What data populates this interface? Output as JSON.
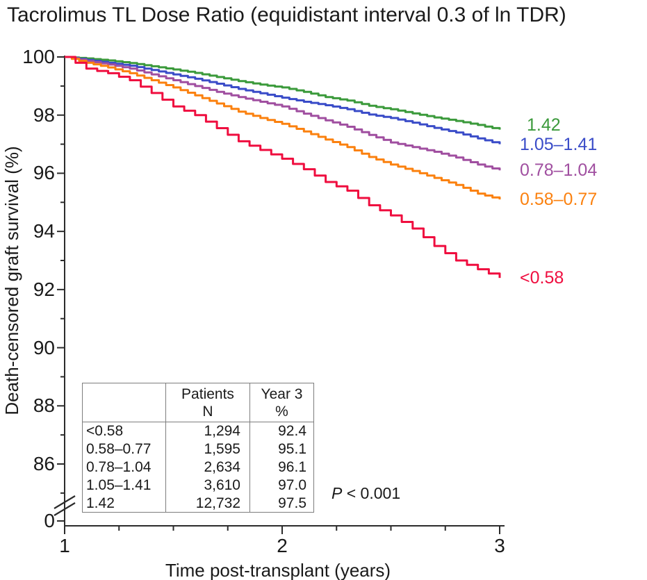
{
  "figure": {
    "title": "Tacrolimus TL Dose Ratio (equidistant interval 0.3 of ln TDR)",
    "stat_label": "P",
    "stat_value": " < 0.001"
  },
  "colors": {
    "text": "#1a1a1a",
    "axis": "#2b2b2b",
    "table_border": "#7d7d7d",
    "green": "#3b9a3b",
    "blue": "#3a4cc8",
    "purple": "#a04fa0",
    "orange": "#fb810f",
    "red": "#ef0e3f"
  },
  "inset_table": {
    "header": [
      "",
      "Patients|N",
      "Year 3|%"
    ],
    "rows": [
      [
        "<0.58",
        "1,294",
        "92.4"
      ],
      [
        "0.58–0.77",
        "1,595",
        "95.1"
      ],
      [
        "0.78–1.04",
        "2,634",
        "96.1"
      ],
      [
        "1.05–1.41",
        "3,610",
        "97.0"
      ],
      [
        "1.42",
        "12,732",
        "97.5"
      ]
    ]
  },
  "chart_data": {
    "type": "line",
    "subtype": "kaplan-meier-step",
    "title": "Tacrolimus TL Dose Ratio (equidistant interval 0.3 of ln TDR)",
    "xlabel": "Time post-transplant (years)",
    "ylabel": "Death-censored graft survival (%)",
    "x_ticks": [
      1,
      2,
      3
    ],
    "x_minor_interval": 0.25,
    "y_ticks": [
      100,
      98,
      96,
      94,
      92,
      90,
      88,
      86
    ],
    "y_minor_interval": 1,
    "y_axis_break": true,
    "y_zero_label": "0",
    "xlim": [
      1,
      3
    ],
    "ylim_main": [
      86,
      100
    ],
    "grid": false,
    "legend_position": "right-of-curves",
    "p_value": "P < 0.001",
    "x": [
      1.0,
      1.1,
      1.2,
      1.3,
      1.4,
      1.5,
      1.6,
      1.7,
      1.8,
      1.9,
      2.0,
      2.1,
      2.2,
      2.3,
      2.4,
      2.5,
      2.6,
      2.7,
      2.8,
      2.9,
      3.0
    ],
    "series": [
      {
        "name": "1.42",
        "color_key": "green",
        "patients": "12,732",
        "year3_pct": 97.5,
        "step_detail": 3,
        "y": [
          100,
          99.95,
          99.88,
          99.79,
          99.68,
          99.57,
          99.45,
          99.31,
          99.17,
          99.05,
          98.95,
          98.8,
          98.62,
          98.5,
          98.32,
          98.2,
          98.06,
          97.92,
          97.8,
          97.66,
          97.5
        ]
      },
      {
        "name": "1.05–1.41",
        "color_key": "blue",
        "patients": "3,610",
        "year3_pct": 97.0,
        "step_detail": 3,
        "y": [
          100,
          99.9,
          99.8,
          99.7,
          99.55,
          99.4,
          99.25,
          99.08,
          98.9,
          98.75,
          98.6,
          98.46,
          98.34,
          98.2,
          98.02,
          97.9,
          97.74,
          97.56,
          97.4,
          97.2,
          97.0
        ]
      },
      {
        "name": "0.78–1.04",
        "color_key": "purple",
        "patients": "2,634",
        "year3_pct": 96.1,
        "step_detail": 3,
        "y": [
          100,
          99.86,
          99.74,
          99.6,
          99.4,
          99.2,
          99.0,
          98.8,
          98.62,
          98.46,
          98.3,
          98.05,
          97.82,
          97.6,
          97.32,
          97.06,
          96.9,
          96.74,
          96.54,
          96.3,
          96.1
        ]
      },
      {
        "name": "0.58–0.77",
        "color_key": "orange",
        "patients": "1,595",
        "year3_pct": 95.1,
        "step_detail": 3,
        "y": [
          100,
          99.8,
          99.64,
          99.44,
          99.2,
          98.95,
          98.68,
          98.4,
          98.12,
          97.9,
          97.7,
          97.44,
          97.16,
          96.9,
          96.56,
          96.3,
          96.08,
          95.84,
          95.6,
          95.3,
          95.1
        ]
      },
      {
        "name": "<0.58",
        "color_key": "red",
        "patients": "1,294",
        "year3_pct": 92.4,
        "step_detail": 2,
        "y": [
          100,
          99.6,
          99.44,
          99.2,
          98.76,
          98.3,
          98.0,
          97.55,
          97.1,
          96.8,
          96.5,
          96.14,
          95.7,
          95.4,
          94.9,
          94.55,
          94.1,
          93.5,
          93.0,
          92.7,
          92.4
        ]
      }
    ]
  }
}
